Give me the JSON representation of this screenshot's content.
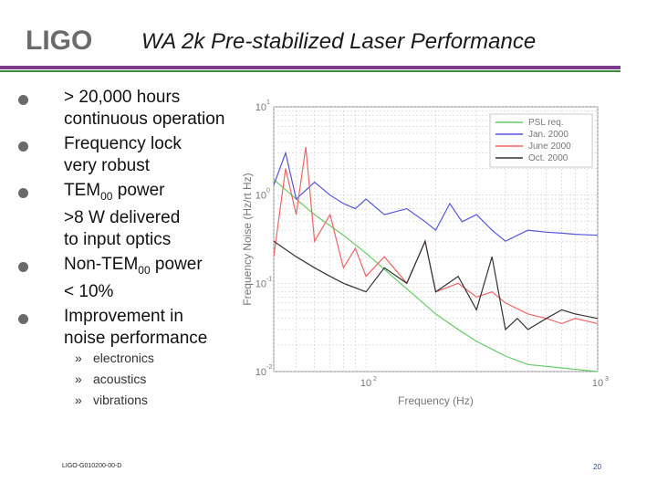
{
  "logo": {
    "text": "LIGO"
  },
  "title": "WA 2k Pre-stabilized Laser Performance",
  "bullets": [
    {
      "lines": [
        "> 20,000 hours",
        "continuous operation"
      ]
    },
    {
      "lines": [
        "Frequency lock",
        "very robust"
      ]
    },
    {
      "pre": "TEM",
      "sub": "00",
      "post": " power",
      "more": [
        ">8 W delivered",
        "to input optics"
      ]
    },
    {
      "pre": "Non-TEM",
      "sub": "00",
      "post": " power",
      "more": [
        "< 10%"
      ]
    },
    {
      "lines": [
        "Improvement in",
        "noise performance"
      ]
    }
  ],
  "sub_bullets": {
    "marker": "»",
    "items": [
      "electronics",
      "acoustics",
      "vibrations"
    ]
  },
  "footer": {
    "doc_id": "LIGO-G010200-00-D",
    "page": "20"
  },
  "colors": {
    "purple_rule": "#7a3b8c",
    "green_rule": "#3c8a3c"
  },
  "chart_data": {
    "type": "line",
    "xlabel": "Frequency (Hz)",
    "ylabel": "Frequency Noise (Hz/rt Hz)",
    "x_scale": "log",
    "y_scale": "log",
    "xlim": [
      40,
      1000
    ],
    "ylim": [
      0.01,
      10
    ],
    "x_ticks": [
      {
        "base": "10",
        "exp": "2",
        "value": 100
      },
      {
        "base": "10",
        "exp": "3",
        "value": 1000
      }
    ],
    "y_ticks": [
      {
        "base": "10",
        "exp": "1",
        "value": 10
      },
      {
        "base": "10",
        "exp": "0",
        "value": 1
      },
      {
        "base": "10",
        "exp": "-1",
        "value": 0.1
      },
      {
        "base": "10",
        "exp": "-2",
        "value": 0.01
      }
    ],
    "grid": true,
    "legend_position": "top-right",
    "series": [
      {
        "name": "PSL req.",
        "color": "#66cc66",
        "x": [
          40,
          50,
          60,
          80,
          100,
          130,
          160,
          200,
          250,
          300,
          400,
          500,
          700,
          1000
        ],
        "y": [
          1.5,
          0.9,
          0.6,
          0.35,
          0.22,
          0.12,
          0.075,
          0.045,
          0.03,
          0.022,
          0.015,
          0.012,
          0.011,
          0.01
        ]
      },
      {
        "name": "Jan. 2000",
        "color": "#5555dd",
        "x": [
          40,
          45,
          50,
          60,
          70,
          80,
          90,
          100,
          120,
          150,
          180,
          200,
          230,
          260,
          300,
          350,
          400,
          500,
          600,
          700,
          800,
          1000
        ],
        "y": [
          1.3,
          3.0,
          0.9,
          1.4,
          1.0,
          0.8,
          0.7,
          0.9,
          0.6,
          0.7,
          0.5,
          0.4,
          0.8,
          0.5,
          0.6,
          0.4,
          0.3,
          0.4,
          0.38,
          0.37,
          0.36,
          0.35
        ]
      },
      {
        "name": "June 2000",
        "color": "#ee6666",
        "x": [
          40,
          45,
          50,
          55,
          60,
          70,
          80,
          90,
          100,
          120,
          150,
          180,
          200,
          250,
          300,
          350,
          400,
          500,
          600,
          700,
          800,
          1000
        ],
        "y": [
          0.2,
          2.0,
          0.6,
          3.5,
          0.3,
          0.6,
          0.15,
          0.25,
          0.12,
          0.2,
          0.1,
          0.3,
          0.08,
          0.1,
          0.07,
          0.08,
          0.06,
          0.045,
          0.04,
          0.035,
          0.04,
          0.035
        ]
      },
      {
        "name": "Oct. 2000",
        "color": "#333333",
        "x": [
          40,
          50,
          60,
          70,
          80,
          100,
          120,
          150,
          180,
          200,
          250,
          300,
          350,
          400,
          450,
          500,
          600,
          700,
          800,
          1000
        ],
        "y": [
          0.3,
          0.2,
          0.15,
          0.12,
          0.1,
          0.08,
          0.15,
          0.1,
          0.3,
          0.08,
          0.12,
          0.05,
          0.2,
          0.03,
          0.04,
          0.03,
          0.04,
          0.05,
          0.045,
          0.04
        ]
      }
    ]
  }
}
